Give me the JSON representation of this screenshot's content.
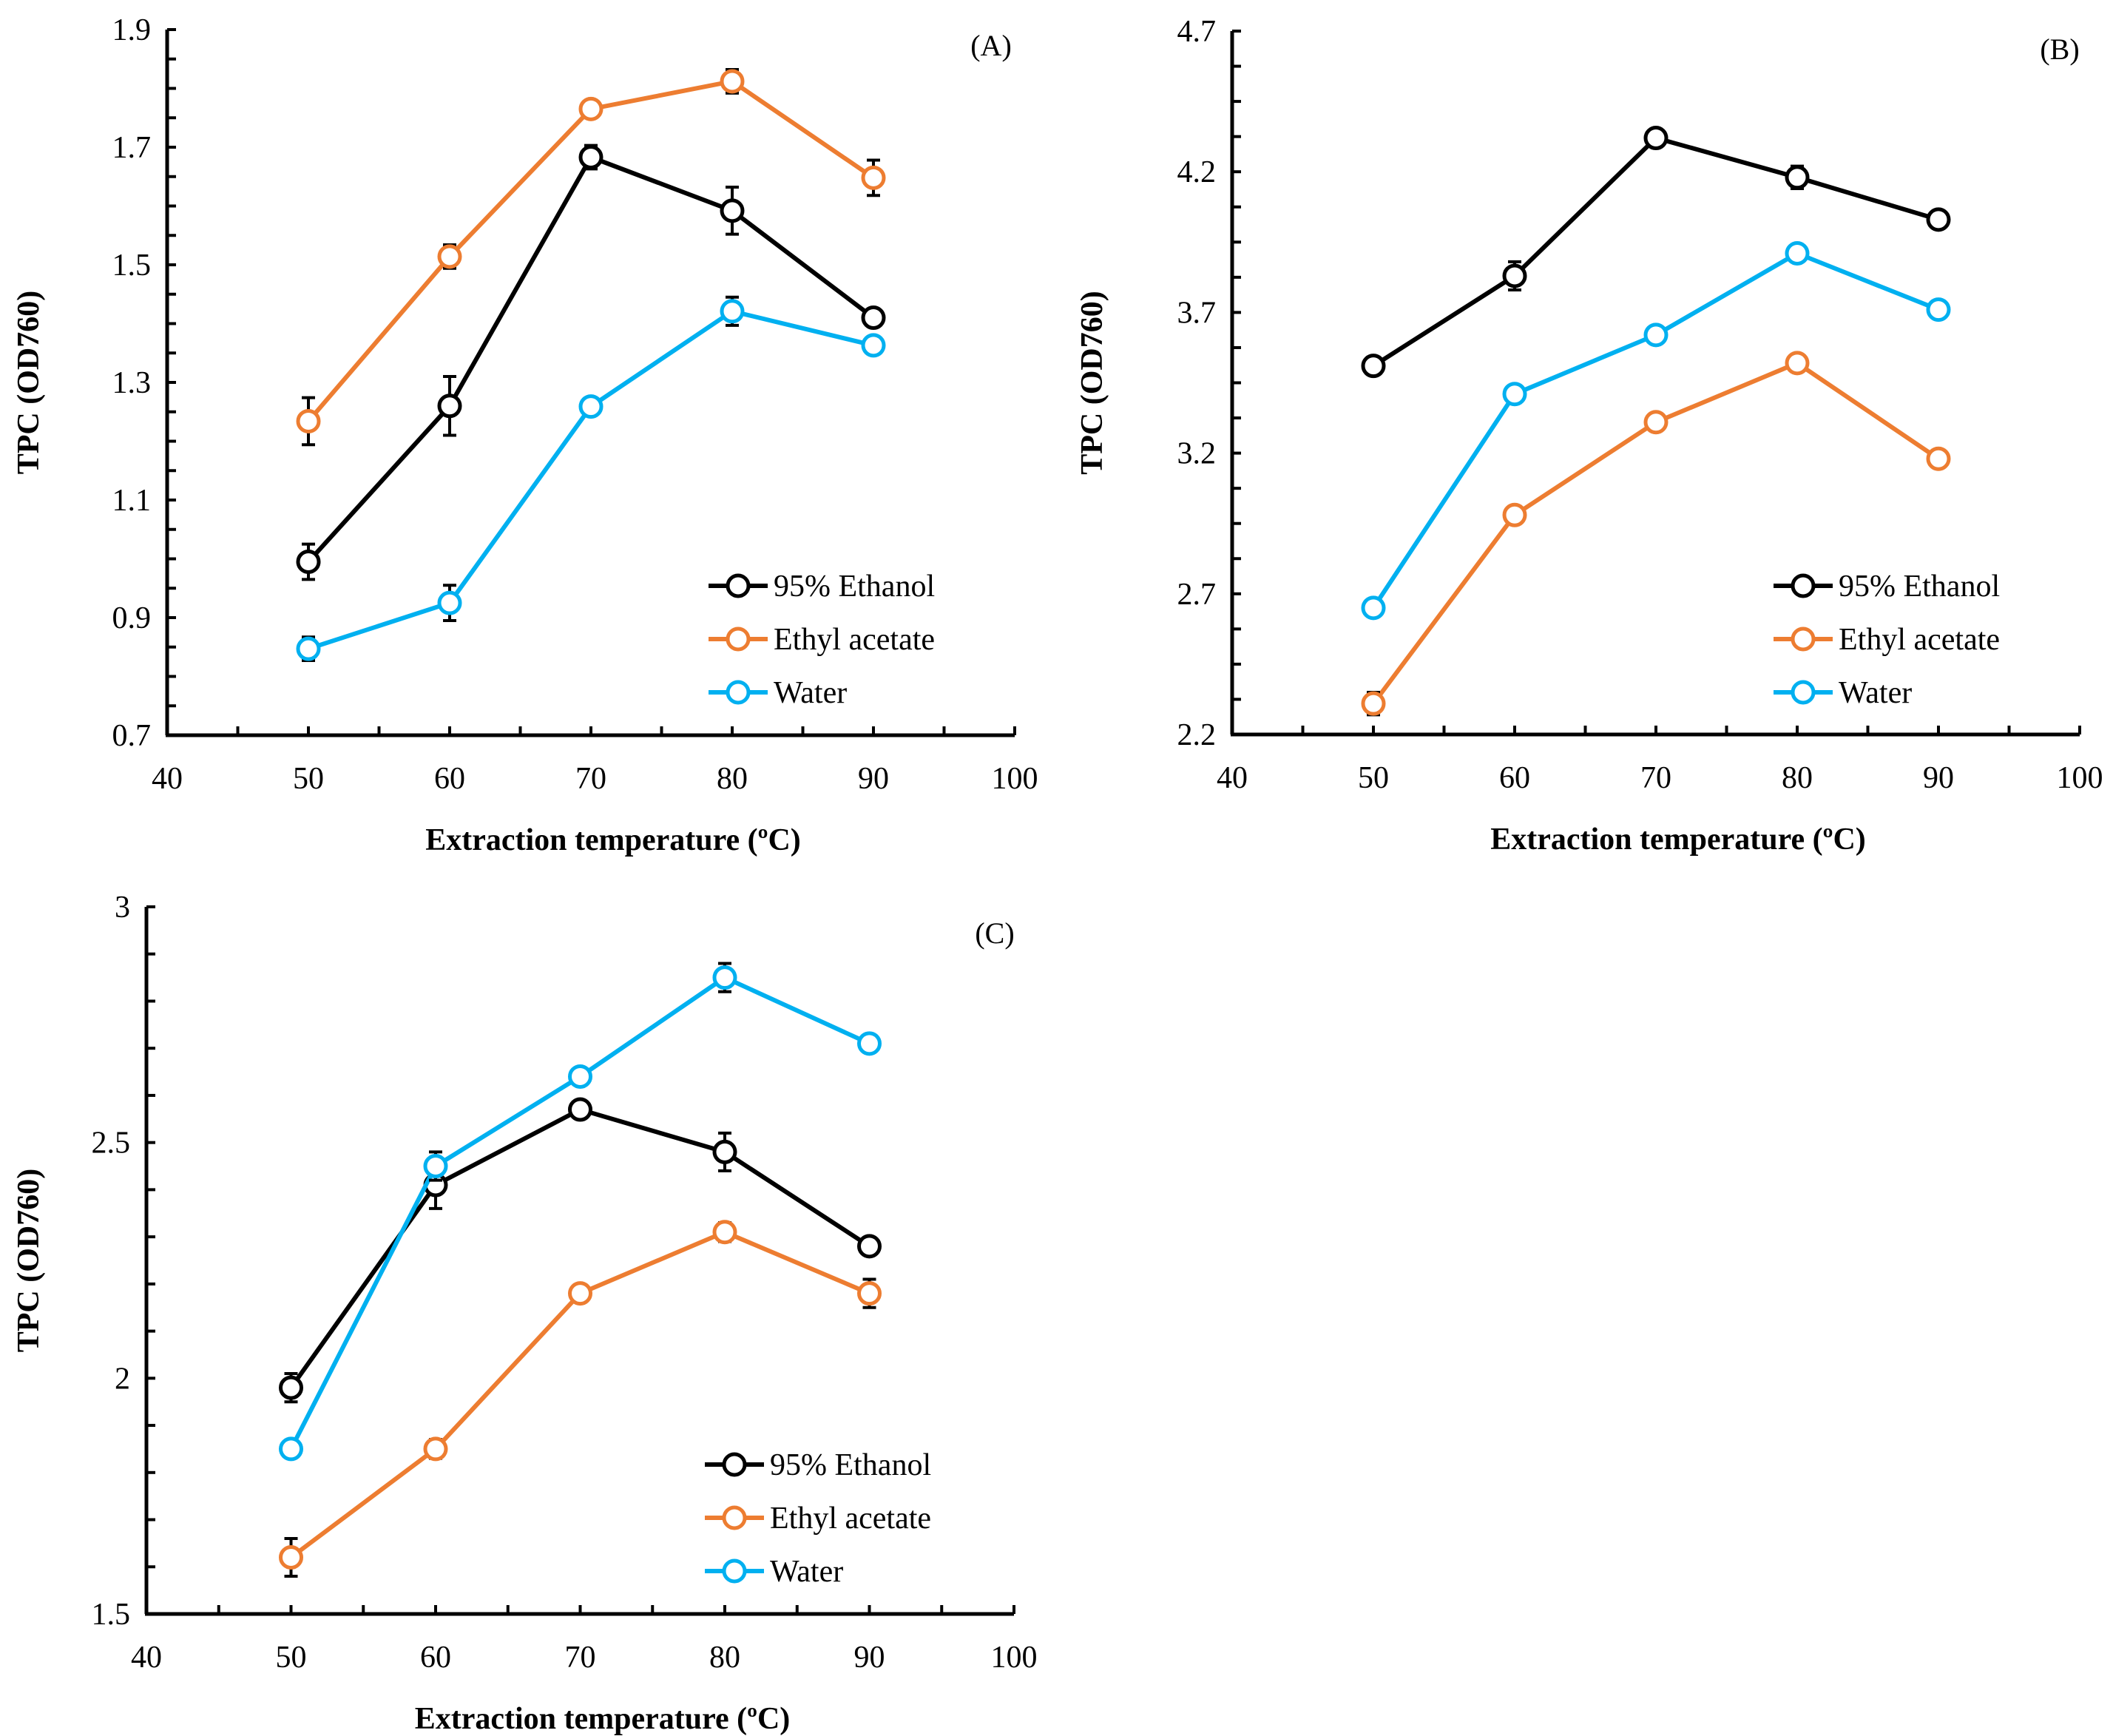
{
  "chart_data": [
    {
      "type": "line",
      "panel_label": "(A)",
      "xlabel": "Extraction temperature (ºC)",
      "ylabel": "TPC (OD760)",
      "xlim": [
        40,
        100
      ],
      "ylim": [
        0.7,
        1.9
      ],
      "x_ticks": [
        40,
        50,
        60,
        70,
        80,
        90,
        100
      ],
      "x_minor_step": 5,
      "y_ticks": [
        0.7,
        0.9,
        1.1,
        1.3,
        1.5,
        1.7,
        1.9
      ],
      "y_tick_labels": [
        "0.7",
        "0.9",
        "1.1",
        "1.3",
        "1.5",
        "1.7",
        "1.9"
      ],
      "y_minor_step": 0.05,
      "grid": false,
      "legend_position": "bottom-right",
      "x": [
        50,
        60,
        70,
        80,
        90
      ],
      "series": [
        {
          "name": "95% Ethanol",
          "color": "#000000",
          "values": [
            0.995,
            1.26,
            1.683,
            1.592,
            1.41
          ],
          "errors": [
            0.03,
            0.05,
            0.02,
            0.04,
            0.0
          ]
        },
        {
          "name": "Ethyl acetate",
          "color": "#ED7D31",
          "values": [
            1.234,
            1.514,
            1.765,
            1.812,
            1.648
          ],
          "errors": [
            0.04,
            0.02,
            0.0,
            0.02,
            0.03
          ]
        },
        {
          "name": "Water",
          "color": "#00B0F0",
          "values": [
            0.847,
            0.925,
            1.259,
            1.421,
            1.363
          ],
          "errors": [
            0.02,
            0.03,
            0.0,
            0.024,
            0.0
          ]
        }
      ]
    },
    {
      "type": "line",
      "panel_label": "(B)",
      "xlabel": "Extraction temperature (ºC)",
      "ylabel": "TPC (OD760)",
      "xlim": [
        40,
        100
      ],
      "ylim": [
        2.2,
        4.7
      ],
      "x_ticks": [
        40,
        50,
        60,
        70,
        80,
        90,
        100
      ],
      "x_minor_step": 5,
      "y_ticks": [
        2.2,
        2.7,
        3.2,
        3.7,
        4.2,
        4.7
      ],
      "y_tick_labels": [
        "2.2",
        "2.7",
        "3.2",
        "3.7",
        "4.2",
        "4.7"
      ],
      "y_minor_step": 0.125,
      "grid": false,
      "legend_position": "bottom-right",
      "x": [
        50,
        60,
        70,
        80,
        90
      ],
      "series": [
        {
          "name": "95% Ethanol",
          "color": "#000000",
          "values": [
            3.51,
            3.83,
            4.32,
            4.18,
            4.03
          ],
          "errors": [
            0.0,
            0.05,
            0.0,
            0.04,
            0.0
          ]
        },
        {
          "name": "Ethyl acetate",
          "color": "#ED7D31",
          "values": [
            2.31,
            2.98,
            3.31,
            3.52,
            3.18
          ],
          "errors": [
            0.04,
            0.0,
            0.0,
            0.0,
            0.0
          ]
        },
        {
          "name": "Water",
          "color": "#00B0F0",
          "values": [
            2.65,
            3.41,
            3.62,
            3.91,
            3.71
          ],
          "errors": [
            0.0,
            0.02,
            0.0,
            0.0,
            0.0
          ]
        }
      ]
    },
    {
      "type": "line",
      "panel_label": "(C)",
      "xlabel": "Extraction temperature (ºC)",
      "ylabel": "TPC (OD760)",
      "xlim": [
        40,
        100
      ],
      "ylim": [
        1.5,
        3.0
      ],
      "x_ticks": [
        40,
        50,
        60,
        70,
        80,
        90,
        100
      ],
      "x_minor_step": 5,
      "y_ticks": [
        1.5,
        2.0,
        2.5,
        3.0
      ],
      "y_tick_labels": [
        "1.5",
        "2",
        "2.5",
        "3"
      ],
      "y_minor_step": 0.1,
      "grid": false,
      "legend_position": "bottom-right",
      "x": [
        50,
        60,
        70,
        80,
        90
      ],
      "series": [
        {
          "name": "95% Ethanol",
          "color": "#000000",
          "values": [
            1.98,
            2.41,
            2.57,
            2.48,
            2.28
          ],
          "errors": [
            0.03,
            0.05,
            0.0,
            0.04,
            0.0
          ]
        },
        {
          "name": "Ethyl acetate",
          "color": "#ED7D31",
          "values": [
            1.62,
            1.85,
            2.18,
            2.31,
            2.18
          ],
          "errors": [
            0.04,
            0.02,
            0.0,
            0.02,
            0.03
          ]
        },
        {
          "name": "Water",
          "color": "#00B0F0",
          "values": [
            1.85,
            2.45,
            2.64,
            2.85,
            2.71
          ],
          "errors": [
            0.0,
            0.03,
            0.0,
            0.03,
            0.0
          ]
        }
      ]
    }
  ]
}
